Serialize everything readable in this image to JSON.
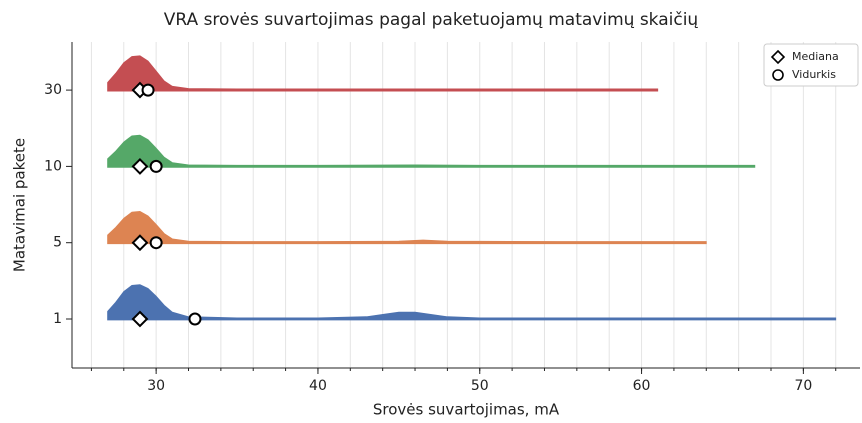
{
  "chart_data": {
    "type": "ridgeline",
    "title": "VRA srovės suvartojimas pagal paketuojamų matavimų skaičių",
    "xlabel": "Srovės suvartojimas, mA",
    "ylabel": "Matavimai pakete",
    "categories": [
      "1",
      "5",
      "10",
      "30"
    ],
    "xlim": [
      24.8,
      73.5
    ],
    "xticks": [
      30,
      40,
      50,
      60,
      70
    ],
    "xticks_minor": [
      26,
      28,
      30,
      32,
      34,
      36,
      38,
      40,
      42,
      44,
      46,
      48,
      50,
      52,
      54,
      56,
      58,
      60,
      62,
      64,
      66,
      68,
      70,
      72
    ],
    "grid": true,
    "legend": {
      "corner": "upper right",
      "entries": [
        {
          "label": "Mediana",
          "marker": "diamond"
        },
        {
          "label": "Vidurkis",
          "marker": "circle"
        }
      ]
    },
    "series": [
      {
        "name": "1",
        "color": "#4c72b0",
        "median": 29,
        "mean": 32.4,
        "x": [
          27,
          27.5,
          28,
          28.5,
          29,
          29.5,
          30,
          30.5,
          31,
          32,
          35,
          40,
          43,
          45,
          46,
          48,
          50,
          60,
          72
        ],
        "density": [
          0.1,
          0.22,
          0.36,
          0.44,
          0.45,
          0.4,
          0.3,
          0.18,
          0.09,
          0.03,
          0.015,
          0.015,
          0.03,
          0.09,
          0.09,
          0.03,
          0.015,
          0.015,
          0.015
        ]
      },
      {
        "name": "5",
        "color": "#dd8452",
        "median": 29,
        "mean": 30,
        "x": [
          27,
          27.5,
          28,
          28.5,
          29,
          29.5,
          30,
          30.5,
          31,
          32,
          35,
          40,
          45,
          46.5,
          48,
          55,
          64
        ],
        "density": [
          0.1,
          0.2,
          0.32,
          0.4,
          0.41,
          0.35,
          0.24,
          0.12,
          0.05,
          0.02,
          0.015,
          0.015,
          0.02,
          0.035,
          0.02,
          0.015,
          0.015
        ]
      },
      {
        "name": "10",
        "color": "#55a868",
        "median": 29,
        "mean": 30,
        "x": [
          27,
          27.5,
          28,
          28.5,
          29,
          29.5,
          30,
          30.5,
          31,
          32,
          35,
          40,
          46,
          50,
          60,
          67
        ],
        "density": [
          0.1,
          0.2,
          0.32,
          0.4,
          0.41,
          0.35,
          0.24,
          0.12,
          0.05,
          0.02,
          0.015,
          0.015,
          0.02,
          0.015,
          0.015,
          0.015
        ]
      },
      {
        "name": "30",
        "color": "#c44e52",
        "median": 29,
        "mean": 29.5,
        "x": [
          27,
          27.5,
          28,
          28.5,
          29,
          29.5,
          30,
          30.5,
          31,
          32,
          35,
          40,
          50,
          61
        ],
        "density": [
          0.1,
          0.22,
          0.36,
          0.44,
          0.45,
          0.38,
          0.25,
          0.12,
          0.05,
          0.02,
          0.015,
          0.015,
          0.015,
          0.015
        ]
      }
    ]
  }
}
